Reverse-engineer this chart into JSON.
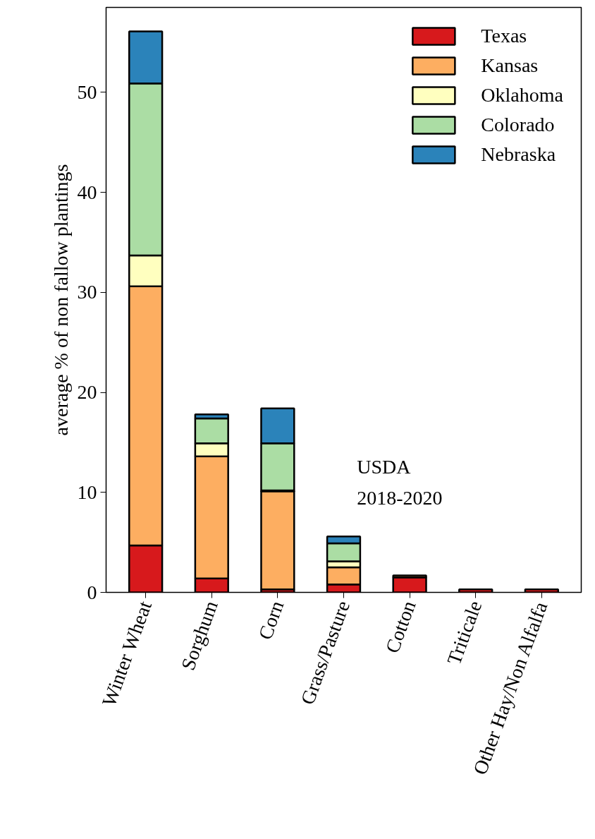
{
  "chart_data": {
    "type": "bar",
    "stacked": true,
    "categories": [
      "Winter Wheat",
      "Sorghum",
      "Corn",
      "Grass/Pasture",
      "Cotton",
      "Triticale",
      "Other Hay/Non Alfalfa"
    ],
    "series": [
      {
        "name": "Texas",
        "color": "#d7191c",
        "values": [
          4.7,
          1.4,
          0.3,
          0.8,
          1.5,
          0.3,
          0.3
        ]
      },
      {
        "name": "Kansas",
        "color": "#fdae61",
        "values": [
          25.9,
          12.2,
          9.8,
          1.7,
          0.2,
          null,
          null
        ]
      },
      {
        "name": "Oklahoma",
        "color": "#ffffbf",
        "values": [
          3.1,
          1.3,
          0.1,
          0.6,
          null,
          null,
          null
        ]
      },
      {
        "name": "Colorado",
        "color": "#abdda4",
        "values": [
          17.2,
          2.5,
          4.7,
          1.8,
          null,
          null,
          null
        ]
      },
      {
        "name": "Nebraska",
        "color": "#2b83ba",
        "values": [
          5.2,
          0.4,
          3.5,
          0.7,
          null,
          null,
          null
        ]
      }
    ],
    "ylabel": "average % of non fallow plantings",
    "ylim": [
      0,
      58.5
    ],
    "yticks": [
      0,
      10,
      20,
      30,
      40,
      50
    ],
    "annotations": [
      "USDA",
      "2018-2020"
    ],
    "legend": "top right",
    "grid": false
  }
}
